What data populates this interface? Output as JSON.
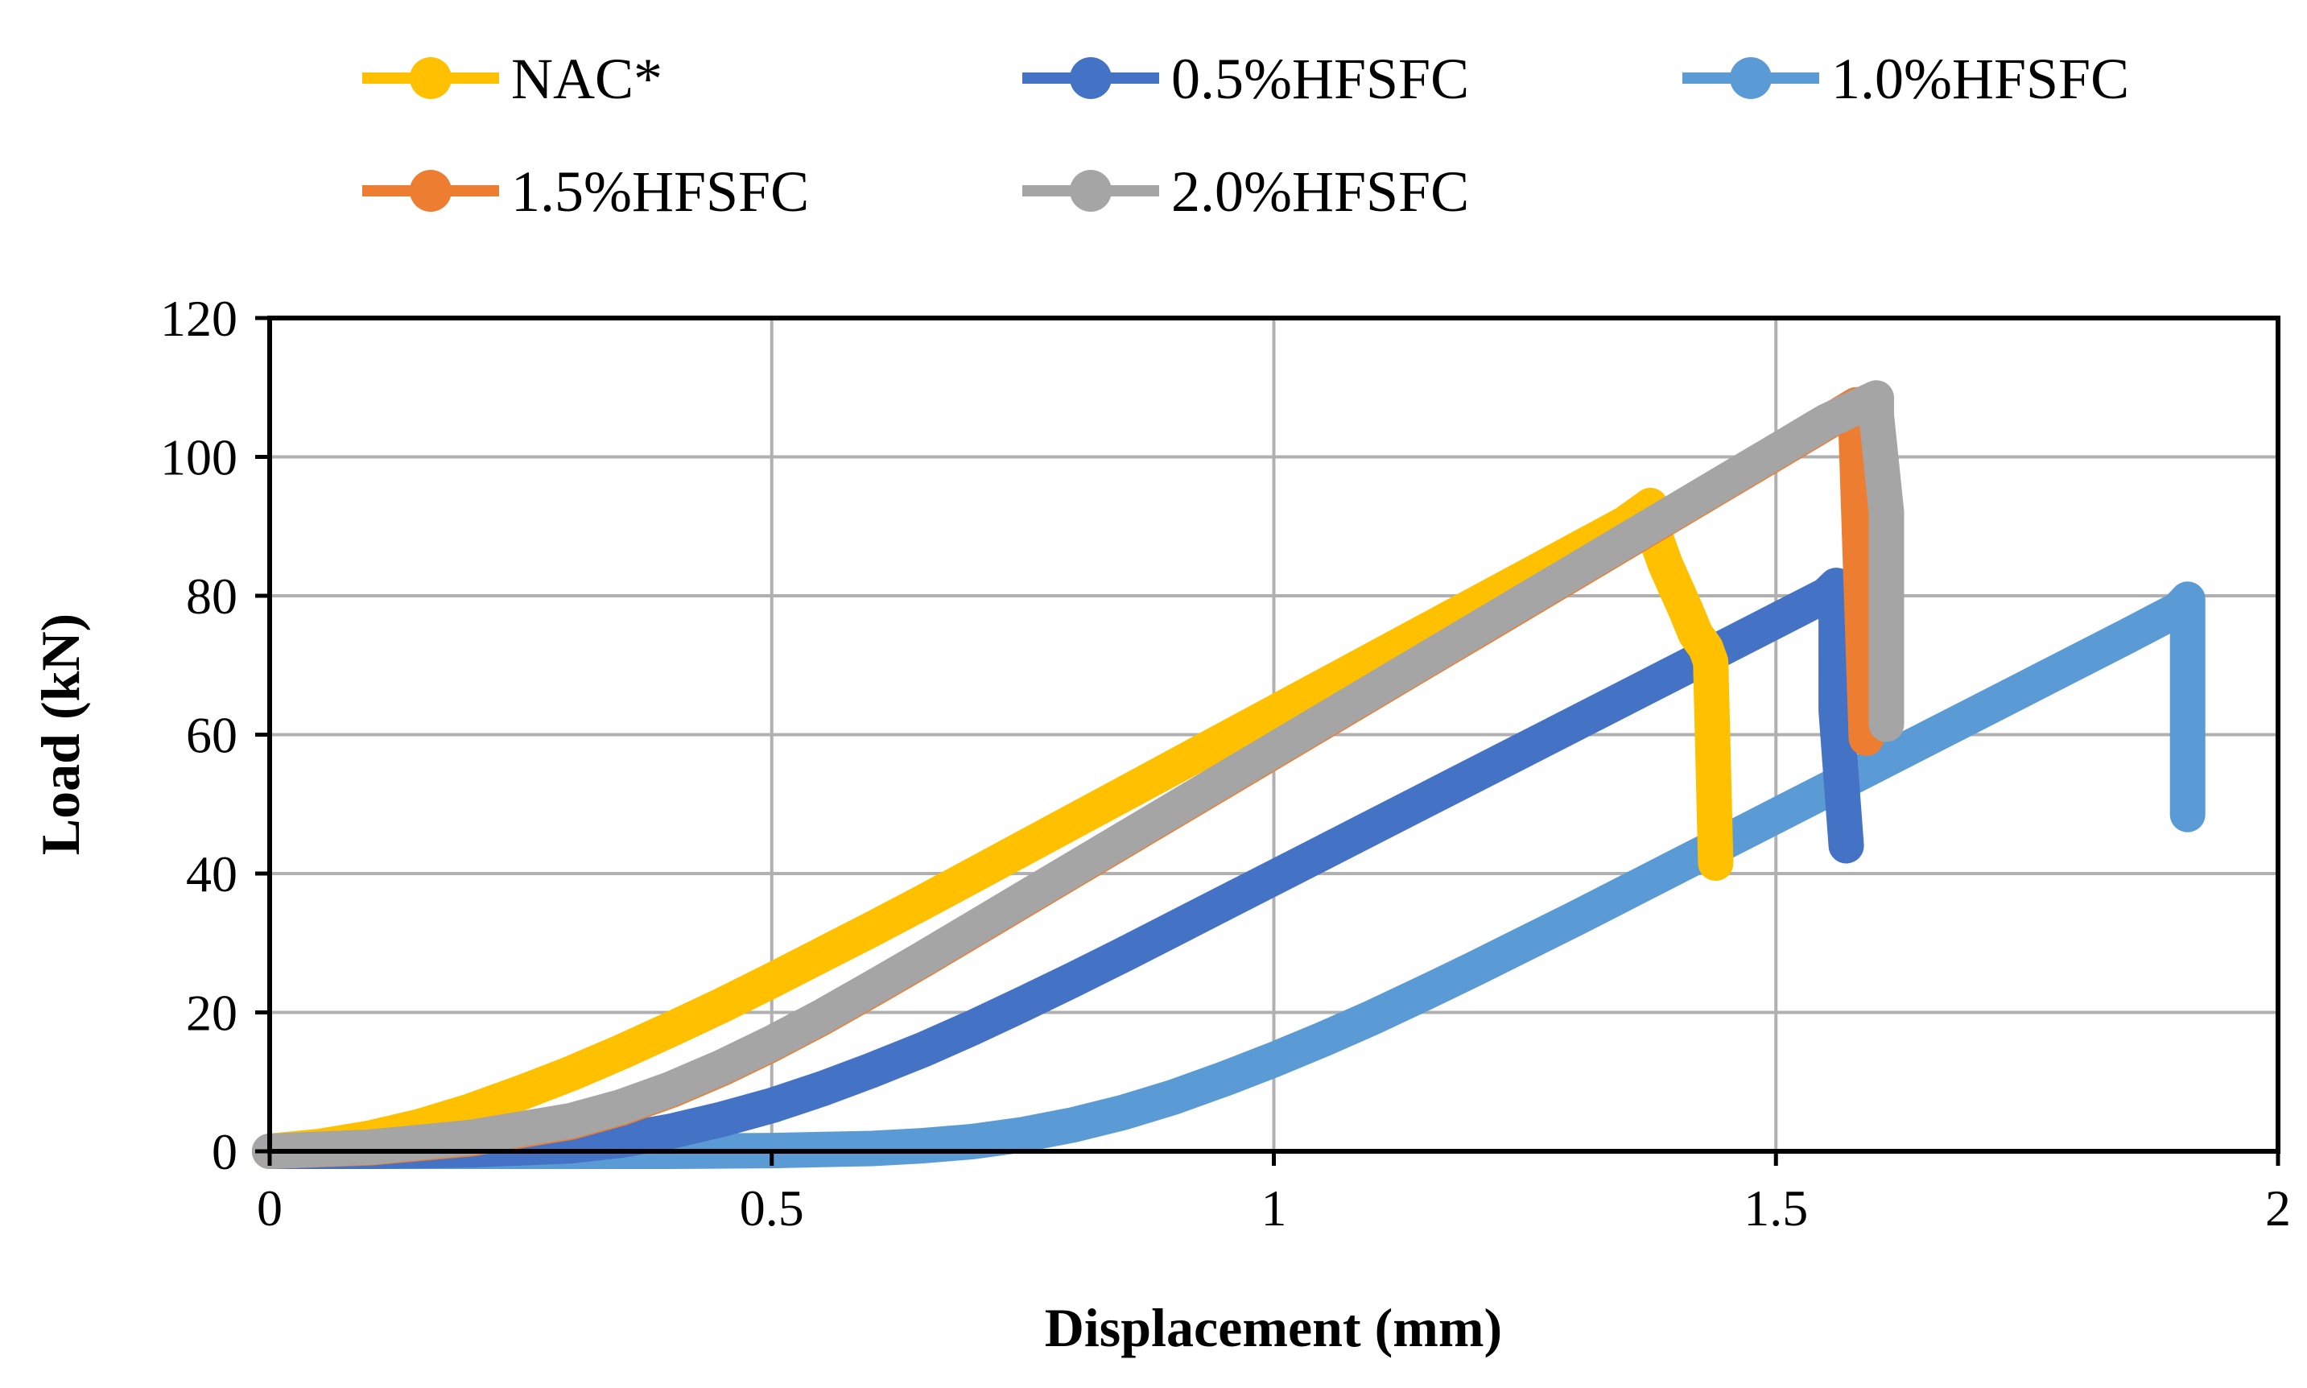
{
  "chart_data": {
    "type": "line",
    "title": "",
    "xlabel": "Displacement (mm)",
    "ylabel": "Load (kN)",
    "xlim": [
      0,
      2
    ],
    "ylim": [
      0,
      120
    ],
    "xticks": [
      0,
      0.5,
      1,
      1.5,
      2
    ],
    "xtick_labels": [
      "0",
      "0.5",
      "1",
      "1.5",
      "2"
    ],
    "yticks": [
      0,
      20,
      40,
      60,
      80,
      100,
      120
    ],
    "ytick_labels": [
      "0",
      "20",
      "40",
      "60",
      "80",
      "100",
      "120"
    ],
    "grid": true,
    "legend_position": "top",
    "series": [
      {
        "name": "NAC*",
        "color": "#FFC000",
        "x": [
          0,
          0.05,
          0.1,
          0.15,
          0.2,
          0.25,
          0.3,
          0.35,
          0.4,
          0.45,
          0.5,
          0.55,
          0.6,
          0.65,
          0.7,
          0.75,
          0.8,
          0.85,
          0.9,
          0.95,
          1.0,
          1.05,
          1.1,
          1.15,
          1.2,
          1.25,
          1.3,
          1.35,
          1.375,
          1.38,
          1.39,
          1.41,
          1.42,
          1.43,
          1.435,
          1.44
        ],
        "y": [
          0,
          0.7,
          1.9,
          3.6,
          5.8,
          8.4,
          11.2,
          14.3,
          17.6,
          21.0,
          24.6,
          28.3,
          32.0,
          35.8,
          39.7,
          43.6,
          47.5,
          51.4,
          55.3,
          59.2,
          63.1,
          67.0,
          70.9,
          74.8,
          78.7,
          82.6,
          86.5,
          90.4,
          93.0,
          88.5,
          84.5,
          78.0,
          74.5,
          72.5,
          70.5,
          41.5
        ]
      },
      {
        "name": "0.5%HFSFC",
        "color": "#4472C4",
        "x": [
          0,
          0.1,
          0.2,
          0.3,
          0.35,
          0.4,
          0.45,
          0.5,
          0.55,
          0.6,
          0.65,
          0.7,
          0.75,
          0.8,
          0.85,
          0.9,
          0.95,
          1.0,
          1.05,
          1.1,
          1.15,
          1.2,
          1.25,
          1.3,
          1.35,
          1.4,
          1.45,
          1.5,
          1.55,
          1.56,
          1.56,
          1.56,
          1.56,
          1.57
        ],
        "y": [
          0,
          0,
          0.2,
          0.8,
          1.6,
          2.9,
          4.6,
          6.6,
          9.0,
          11.7,
          14.6,
          17.8,
          21.2,
          24.7,
          28.3,
          32.0,
          35.7,
          39.4,
          43.1,
          46.8,
          50.5,
          54.2,
          57.9,
          61.6,
          65.3,
          69.0,
          72.7,
          76.4,
          80.1,
          81.5,
          76.0,
          69.5,
          63.5,
          44.0
        ]
      },
      {
        "name": "1.0%HFSFC",
        "color": "#5B9BD5",
        "x": [
          0,
          0.2,
          0.4,
          0.5,
          0.6,
          0.65,
          0.7,
          0.75,
          0.8,
          0.85,
          0.9,
          0.95,
          1.0,
          1.05,
          1.1,
          1.15,
          1.2,
          1.25,
          1.3,
          1.35,
          1.4,
          1.45,
          1.5,
          1.55,
          1.6,
          1.65,
          1.7,
          1.75,
          1.8,
          1.85,
          1.9,
          1.91,
          1.91,
          1.91
        ],
        "y": [
          0,
          0,
          0,
          0.1,
          0.4,
          0.8,
          1.4,
          2.4,
          3.8,
          5.6,
          7.8,
          10.4,
          13.2,
          16.2,
          19.4,
          22.8,
          26.3,
          29.9,
          33.5,
          37.2,
          40.9,
          44.6,
          48.3,
          52.0,
          55.7,
          59.4,
          63.1,
          66.8,
          70.5,
          74.2,
          78.0,
          79.5,
          60.5,
          48.5
        ]
      },
      {
        "name": "1.5%HFSFC",
        "color": "#ED7D31",
        "x": [
          0,
          0.1,
          0.2,
          0.3,
          0.35,
          0.4,
          0.45,
          0.5,
          0.55,
          0.6,
          0.65,
          0.7,
          0.75,
          0.8,
          0.85,
          0.9,
          0.95,
          1.0,
          1.05,
          1.1,
          1.15,
          1.2,
          1.25,
          1.3,
          1.35,
          1.4,
          1.45,
          1.5,
          1.55,
          1.58,
          1.58,
          1.59
        ],
        "y": [
          0,
          0.5,
          1.8,
          4.2,
          6.2,
          8.8,
          11.9,
          15.4,
          19.2,
          23.3,
          27.5,
          31.8,
          36.1,
          40.4,
          44.7,
          49.0,
          53.3,
          57.6,
          61.9,
          66.2,
          70.5,
          74.8,
          79.1,
          83.4,
          87.7,
          92.0,
          96.3,
          100.6,
          104.9,
          107.5,
          103.0,
          59.5
        ]
      },
      {
        "name": "2.0%HFSFC",
        "color": "#A5A5A5",
        "x": [
          0,
          0.1,
          0.2,
          0.3,
          0.35,
          0.4,
          0.45,
          0.5,
          0.55,
          0.6,
          0.65,
          0.7,
          0.75,
          0.8,
          0.85,
          0.9,
          0.95,
          1.0,
          1.05,
          1.1,
          1.15,
          1.2,
          1.25,
          1.3,
          1.35,
          1.4,
          1.45,
          1.5,
          1.55,
          1.6,
          1.6,
          1.61,
          1.61
        ],
        "y": [
          0,
          0.6,
          2.0,
          4.4,
          6.4,
          9.0,
          12.1,
          15.6,
          19.4,
          23.5,
          27.7,
          32.0,
          36.3,
          40.6,
          44.9,
          49.2,
          53.5,
          57.8,
          62.1,
          66.4,
          70.7,
          75.0,
          79.3,
          83.6,
          87.9,
          92.2,
          96.5,
          100.8,
          105.1,
          108.5,
          106.0,
          92.0,
          61.5
        ]
      }
    ]
  }
}
